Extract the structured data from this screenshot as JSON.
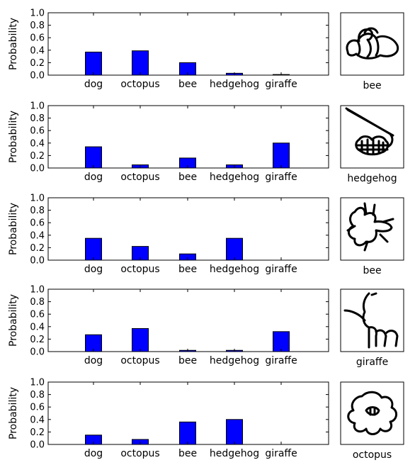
{
  "chart_data": [
    {
      "type": "bar",
      "categories": [
        "dog",
        "octopus",
        "bee",
        "hedgehog",
        "giraffe"
      ],
      "values": [
        0.37,
        0.39,
        0.2,
        0.03,
        0.01
      ],
      "ylabel": "Probability",
      "ylim": [
        0,
        1.0
      ],
      "yticks": [
        "0.0",
        "0.2",
        "0.4",
        "0.6",
        "0.8",
        "1.0"
      ],
      "sketch_label": "bee",
      "sketch_icon": "bee-sketch"
    },
    {
      "type": "bar",
      "categories": [
        "dog",
        "octopus",
        "bee",
        "hedgehog",
        "giraffe"
      ],
      "values": [
        0.34,
        0.05,
        0.16,
        0.05,
        0.4
      ],
      "ylabel": "Probability",
      "ylim": [
        0,
        1.0
      ],
      "yticks": [
        "0.0",
        "0.2",
        "0.4",
        "0.6",
        "0.8",
        "1.0"
      ],
      "sketch_label": "hedgehog",
      "sketch_icon": "hedgehog-sketch"
    },
    {
      "type": "bar",
      "categories": [
        "dog",
        "octopus",
        "bee",
        "hedgehog",
        "giraffe"
      ],
      "values": [
        0.35,
        0.22,
        0.1,
        0.35,
        0.0
      ],
      "ylabel": "Probability",
      "ylim": [
        0,
        1.0
      ],
      "yticks": [
        "0.0",
        "0.2",
        "0.4",
        "0.6",
        "0.8",
        "1.0"
      ],
      "sketch_label": "bee",
      "sketch_icon": "bee-sketch"
    },
    {
      "type": "bar",
      "categories": [
        "dog",
        "octopus",
        "bee",
        "hedgehog",
        "giraffe"
      ],
      "values": [
        0.27,
        0.37,
        0.02,
        0.02,
        0.32
      ],
      "ylabel": "Probability",
      "ylim": [
        0,
        1.0
      ],
      "yticks": [
        "0.0",
        "0.2",
        "0.4",
        "0.6",
        "0.8",
        "1.0"
      ],
      "sketch_label": "giraffe",
      "sketch_icon": "giraffe-sketch"
    },
    {
      "type": "bar",
      "categories": [
        "dog",
        "octopus",
        "bee",
        "hedgehog",
        "giraffe"
      ],
      "values": [
        0.15,
        0.08,
        0.36,
        0.4,
        0.0
      ],
      "ylabel": "Probability",
      "ylim": [
        0,
        1.0
      ],
      "yticks": [
        "0.0",
        "0.2",
        "0.4",
        "0.6",
        "0.8",
        "1.0"
      ],
      "sketch_label": "octopus",
      "sketch_icon": "octopus-sketch"
    }
  ],
  "colors": {
    "bar": "#0000ff",
    "edge": "#000000"
  }
}
